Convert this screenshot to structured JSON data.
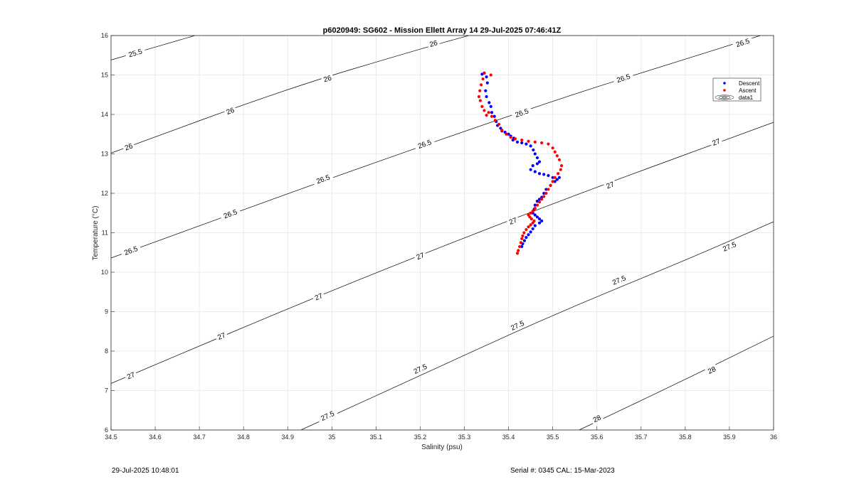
{
  "footer": {
    "timestamp": "29-Jul-2025 10:48:01",
    "serial": "Serial #: 0345  CAL: 15-Mar-2023"
  },
  "chart_data": {
    "type": "scatter",
    "title": "p6020949: SG602 - Mission Ellett Array 14 29-Jul-2025 07:46:41Z",
    "xlabel": "Salinity (psu)",
    "ylabel": "Temperature (°C)",
    "xlim": [
      34.5,
      36
    ],
    "ylim": [
      6,
      16
    ],
    "xticks": [
      34.5,
      34.6,
      34.7,
      34.8,
      34.9,
      35,
      35.1,
      35.2,
      35.3,
      35.4,
      35.5,
      35.6,
      35.7,
      35.8,
      35.9,
      36
    ],
    "xtick_labels": [
      "34.5",
      "34.6",
      "34.7",
      "34.8",
      "34.9",
      "35",
      "35.1",
      "35.2",
      "35.3",
      "35.4",
      "35.5",
      "35.6",
      "35.7",
      "35.8",
      "35.9",
      "36"
    ],
    "yticks": [
      6,
      7,
      8,
      9,
      10,
      11,
      12,
      13,
      14,
      15,
      16
    ],
    "ytick_labels": [
      "6",
      "7",
      "8",
      "9",
      "10",
      "11",
      "12",
      "13",
      "14",
      "15",
      "16"
    ],
    "grid": true,
    "legend": {
      "position": "top-right",
      "entries": [
        "Descent",
        "Ascent",
        "data1"
      ]
    },
    "colors": {
      "descent": "#0000ff",
      "ascent": "#ff0000",
      "contour": "#000000",
      "grid": "#e6e6e6"
    },
    "contours": [
      {
        "level": "25.5",
        "points": [
          [
            34.5,
            15.38
          ],
          [
            34.69,
            16
          ]
        ],
        "label_positions": [
          [
            34.555,
            15.56
          ]
        ]
      },
      {
        "level": "26",
        "points": [
          [
            34.5,
            13.02
          ],
          [
            34.9,
            14.66
          ],
          [
            35.2,
            15.66
          ],
          [
            35.31,
            16
          ]
        ],
        "label_positions": [
          [
            34.54,
            13.18
          ],
          [
            34.77,
            14.09
          ],
          [
            34.99,
            14.91
          ],
          [
            35.23,
            15.8
          ]
        ]
      },
      {
        "level": "26.5",
        "points": [
          [
            34.5,
            10.36
          ],
          [
            35.0,
            12.4
          ],
          [
            35.5,
            14.35
          ],
          [
            35.8,
            15.4
          ],
          [
            35.97,
            16
          ]
        ],
        "label_positions": [
          [
            34.545,
            10.55
          ],
          [
            34.77,
            11.48
          ],
          [
            34.98,
            12.36
          ],
          [
            35.21,
            13.25
          ],
          [
            35.43,
            14.04
          ],
          [
            35.66,
            14.92
          ],
          [
            35.93,
            15.82
          ]
        ]
      },
      {
        "level": "27",
        "points": [
          [
            34.5,
            7.18
          ],
          [
            35.0,
            9.55
          ],
          [
            35.5,
            11.75
          ],
          [
            36,
            13.8
          ]
        ],
        "label_positions": [
          [
            34.545,
            7.38
          ],
          [
            34.75,
            8.38
          ],
          [
            34.97,
            9.38
          ],
          [
            35.2,
            10.41
          ],
          [
            35.41,
            11.3
          ],
          [
            35.63,
            12.21
          ],
          [
            35.87,
            13.3
          ]
        ]
      },
      {
        "level": "27.5",
        "points": [
          [
            34.93,
            6
          ],
          [
            35.2,
            7.38
          ],
          [
            35.5,
            8.92
          ],
          [
            35.8,
            10.3
          ],
          [
            36,
            11.28
          ]
        ],
        "label_positions": [
          [
            34.99,
            6.36
          ],
          [
            35.2,
            7.55
          ],
          [
            35.42,
            8.65
          ],
          [
            35.65,
            9.8
          ],
          [
            35.9,
            10.65
          ]
        ]
      },
      {
        "level": "28",
        "points": [
          [
            35.56,
            6
          ],
          [
            35.8,
            7.28
          ],
          [
            36,
            8.38
          ]
        ],
        "label_positions": [
          [
            35.6,
            6.29
          ],
          [
            35.86,
            7.52
          ]
        ]
      }
    ],
    "series": [
      {
        "name": "Descent",
        "x": [
          35.34,
          35.345,
          35.35,
          35.352,
          35.348,
          35.35,
          35.356,
          35.36,
          35.362,
          35.368,
          35.372,
          35.375,
          35.382,
          35.385,
          35.392,
          35.4,
          35.405,
          35.412,
          35.41,
          35.42,
          35.43,
          35.44,
          35.45,
          35.456,
          35.46,
          35.465,
          35.47,
          35.465,
          35.455,
          35.45,
          35.46,
          35.47,
          35.48,
          35.49,
          35.5,
          35.51,
          35.515,
          35.505,
          35.495,
          35.485,
          35.48,
          35.475,
          35.47,
          35.465,
          35.46,
          35.458,
          35.455,
          35.46,
          35.465,
          35.47,
          35.475,
          35.47,
          35.46,
          35.455,
          35.45,
          35.445,
          35.44,
          35.436,
          35.432,
          35.43
        ],
        "y": [
          15.02,
          15.05,
          14.95,
          14.8,
          14.6,
          14.45,
          14.3,
          14.2,
          14.05,
          13.95,
          13.82,
          13.72,
          13.65,
          13.58,
          13.55,
          13.5,
          13.45,
          13.4,
          13.35,
          13.3,
          13.28,
          13.25,
          13.2,
          13.1,
          13.0,
          12.9,
          12.8,
          12.75,
          12.7,
          12.6,
          12.55,
          12.5,
          12.48,
          12.45,
          12.4,
          12.35,
          12.4,
          12.3,
          12.2,
          12.1,
          12.0,
          11.9,
          11.85,
          11.8,
          11.7,
          11.6,
          11.5,
          11.45,
          11.4,
          11.35,
          11.3,
          11.25,
          11.18,
          11.1,
          11.02,
          10.95,
          10.88,
          10.8,
          10.72,
          10.65
        ]
      },
      {
        "name": "Ascent",
        "x": [
          35.345,
          35.342,
          35.338,
          35.335,
          35.333,
          35.336,
          35.34,
          35.345,
          35.35,
          35.355,
          35.36,
          35.362,
          35.37,
          35.378,
          35.385,
          35.395,
          35.405,
          35.415,
          35.43,
          35.445,
          35.46,
          35.475,
          35.49,
          35.5,
          35.505,
          35.51,
          35.515,
          35.52,
          35.518,
          35.512,
          35.505,
          35.5,
          35.495,
          35.49,
          35.485,
          35.48,
          35.475,
          35.47,
          35.465,
          35.46,
          35.455,
          35.45,
          35.445,
          35.448,
          35.452,
          35.458,
          35.455,
          35.45,
          35.445,
          35.44,
          35.435,
          35.432,
          35.43,
          35.428,
          35.425,
          35.422,
          35.42
        ],
        "y": [
          15.05,
          14.9,
          14.75,
          14.6,
          14.45,
          14.35,
          14.2,
          14.1,
          13.98,
          14.05,
          15.0,
          13.95,
          13.85,
          13.75,
          13.6,
          13.5,
          13.42,
          13.38,
          13.35,
          13.32,
          13.3,
          13.28,
          13.25,
          13.15,
          13.05,
          12.95,
          12.85,
          12.7,
          12.6,
          12.5,
          12.4,
          12.3,
          12.2,
          12.1,
          12.0,
          11.92,
          11.85,
          11.78,
          11.7,
          11.62,
          11.55,
          11.5,
          11.45,
          11.4,
          11.35,
          11.3,
          11.25,
          11.2,
          11.15,
          11.08,
          11.0,
          10.92,
          10.85,
          10.75,
          10.65,
          10.55,
          10.48
        ]
      }
    ]
  }
}
